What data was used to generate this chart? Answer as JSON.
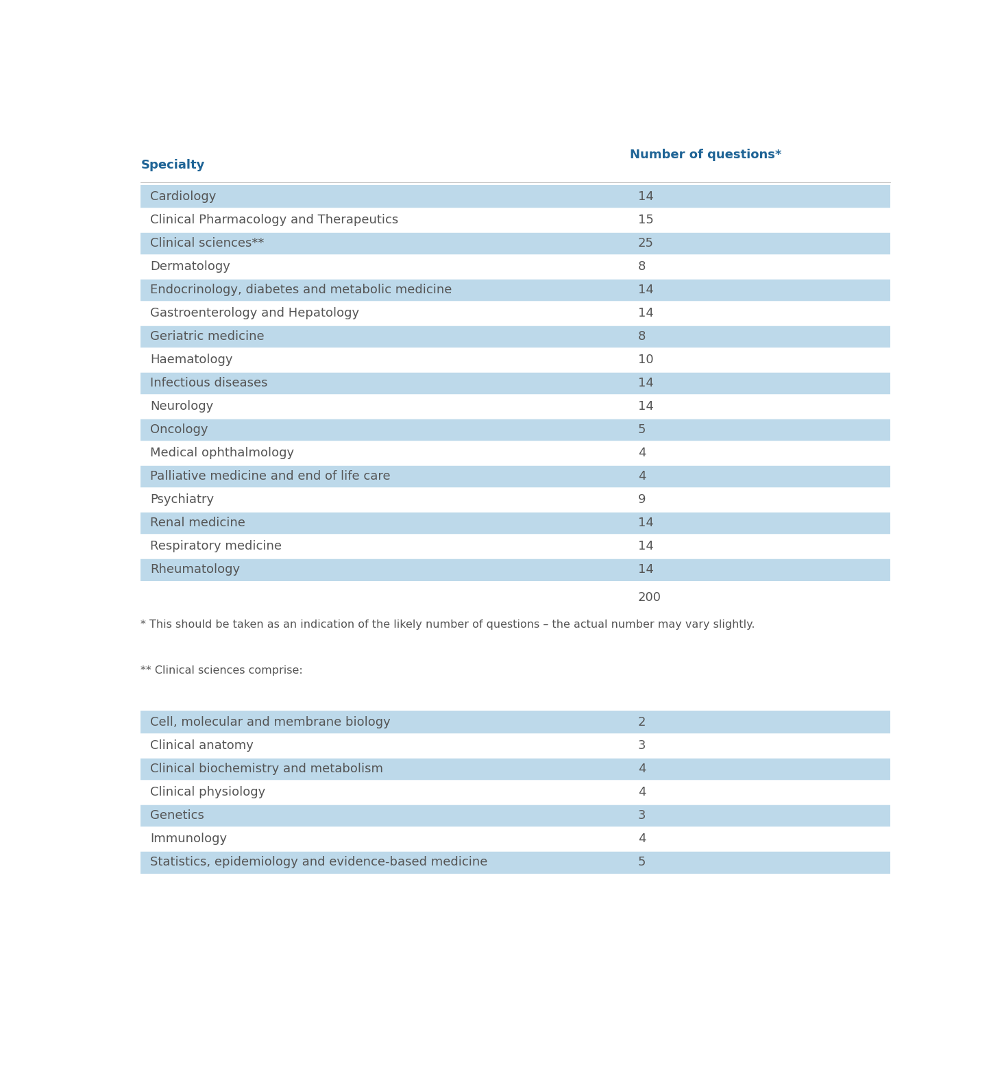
{
  "header_specialty": "Specialty",
  "header_questions": "Number of questions*",
  "header_color": "#1F6496",
  "main_rows": [
    {
      "specialty": "Cardiology",
      "questions": "14",
      "shaded": true
    },
    {
      "specialty": "Clinical Pharmacology and Therapeutics",
      "questions": "15",
      "shaded": false
    },
    {
      "specialty": "Clinical sciences**",
      "questions": "25",
      "shaded": true
    },
    {
      "specialty": "Dermatology",
      "questions": "8",
      "shaded": false
    },
    {
      "specialty": "Endocrinology, diabetes and metabolic medicine",
      "questions": "14",
      "shaded": true
    },
    {
      "specialty": "Gastroenterology and Hepatology",
      "questions": "14",
      "shaded": false
    },
    {
      "specialty": "Geriatric medicine",
      "questions": "8",
      "shaded": true
    },
    {
      "specialty": "Haematology",
      "questions": "10",
      "shaded": false
    },
    {
      "specialty": "Infectious diseases",
      "questions": "14",
      "shaded": true
    },
    {
      "specialty": "Neurology",
      "questions": "14",
      "shaded": false
    },
    {
      "specialty": "Oncology",
      "questions": "5",
      "shaded": true
    },
    {
      "specialty": "Medical ophthalmology",
      "questions": "4",
      "shaded": false
    },
    {
      "specialty": "Palliative medicine and end of life care",
      "questions": "4",
      "shaded": true
    },
    {
      "specialty": "Psychiatry",
      "questions": "9",
      "shaded": false
    },
    {
      "specialty": "Renal medicine",
      "questions": "14",
      "shaded": true
    },
    {
      "specialty": "Respiratory medicine",
      "questions": "14",
      "shaded": false
    },
    {
      "specialty": "Rheumatology",
      "questions": "14",
      "shaded": true
    }
  ],
  "total": "200",
  "footnote1": "* This should be taken as an indication of the likely number of questions – the actual number may vary slightly.",
  "footnote2": "** Clinical sciences comprise:",
  "sub_rows": [
    {
      "specialty": "Cell, molecular and membrane biology",
      "questions": "2",
      "shaded": true
    },
    {
      "specialty": "Clinical anatomy",
      "questions": "3",
      "shaded": false
    },
    {
      "specialty": "Clinical biochemistry and metabolism",
      "questions": "4",
      "shaded": true
    },
    {
      "specialty": "Clinical physiology",
      "questions": "4",
      "shaded": false
    },
    {
      "specialty": "Genetics",
      "questions": "3",
      "shaded": true
    },
    {
      "specialty": "Immunology",
      "questions": "4",
      "shaded": false
    },
    {
      "specialty": "Statistics, epidemiology and evidence-based medicine",
      "questions": "5",
      "shaded": true
    }
  ],
  "shaded_color": "#BDD9EA",
  "white_color": "#FFFFFF",
  "text_color": "#555555",
  "bg_color": "#FFFFFF",
  "font_size": 13,
  "header_font_size": 13,
  "footnote_font_size": 11.5
}
